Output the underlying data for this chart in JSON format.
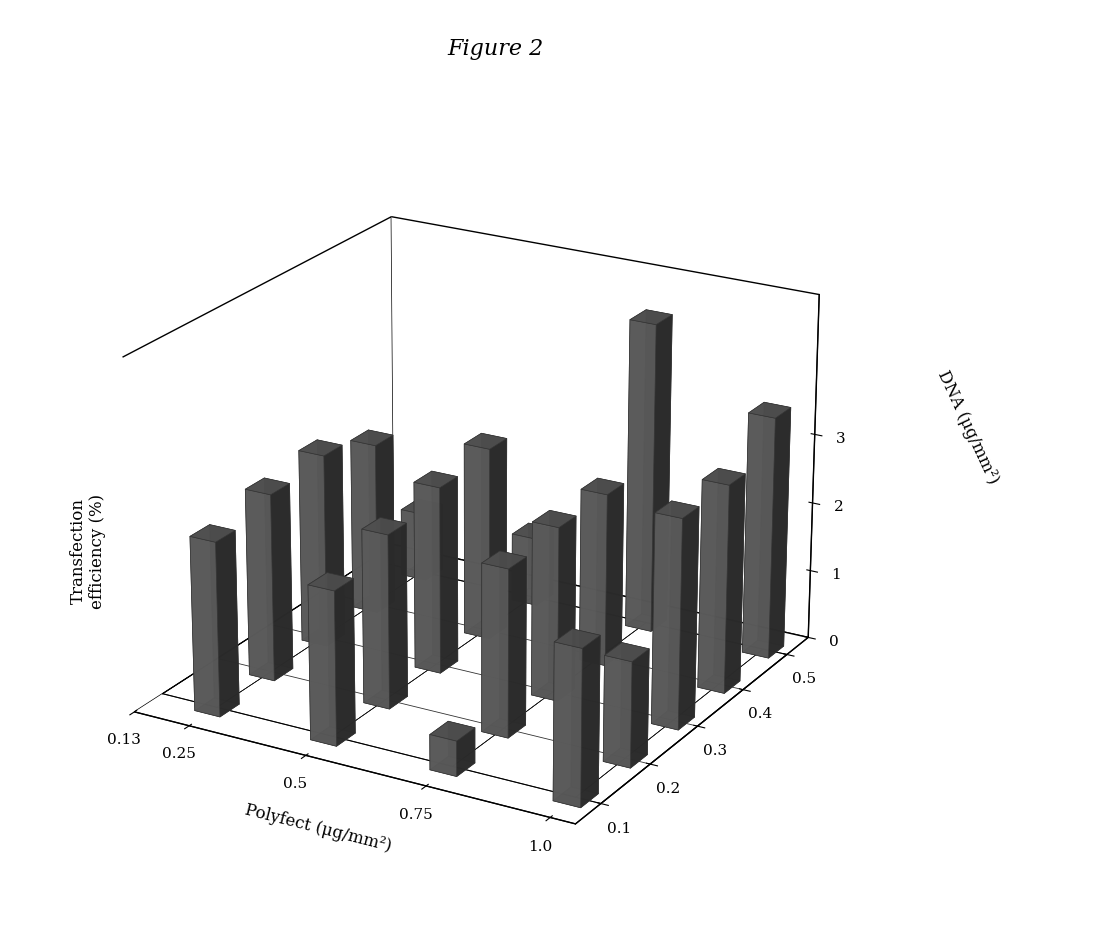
{
  "title": "Figure 2",
  "xlabel": "Polyfect (μg/mm²)",
  "ylabel_transfection": "Transfection\nefficiency (%)",
  "zlabel": "DNA (μg/mm²)",
  "polyfect_values": [
    0.25,
    0.5,
    0.75,
    1.0
  ],
  "dna_values": [
    0.1,
    0.2,
    0.3,
    0.4,
    0.5
  ],
  "polyfect_ticks": [
    0.13,
    0.25,
    0.5,
    0.75,
    1.0
  ],
  "heights": {
    "0.1": [
      2.5,
      2.2,
      0.5,
      2.2
    ],
    "0.2": [
      2.7,
      2.5,
      2.4,
      1.5
    ],
    "0.3": [
      2.8,
      2.7,
      2.5,
      3.0
    ],
    "0.4": [
      2.5,
      2.8,
      2.5,
      3.0
    ],
    "0.5": [
      1.0,
      1.0,
      4.5,
      3.5
    ]
  },
  "yticks": [
    0,
    1,
    2,
    3
  ],
  "ylim": [
    0,
    5
  ],
  "bar_color": "#666666",
  "bar_alpha": 0.9,
  "background_color": "#ffffff",
  "elev": 22,
  "azim": -60,
  "bar_width": 0.055,
  "bar_depth": 0.035
}
